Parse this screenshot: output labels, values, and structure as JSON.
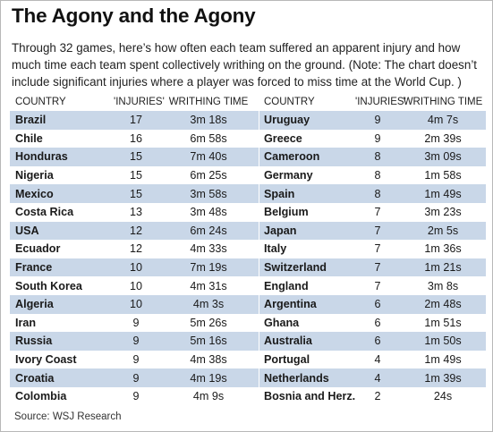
{
  "title": "The Agony and the Agony",
  "subtitle": "Through 32 games, here’s how often each team suffered an apparent injury and how much time each team spent collectively writhing on the ground. (Note: The chart doesn’t include significant injuries where a player was forced to miss time at the World Cup. )",
  "source": "Source: WSJ Research",
  "colors": {
    "row_shade": "#c9d7e8",
    "background": "#ffffff"
  },
  "chart_data": {
    "type": "table",
    "columns": [
      "COUNTRY",
      "'INJURIES'",
      "WRITHING TIME"
    ],
    "left": [
      {
        "country": "Brazil",
        "injuries": "17",
        "time": "3m 18s"
      },
      {
        "country": "Chile",
        "injuries": "16",
        "time": "6m 58s"
      },
      {
        "country": "Honduras",
        "injuries": "15",
        "time": "7m 40s"
      },
      {
        "country": "Nigeria",
        "injuries": "15",
        "time": "6m 25s"
      },
      {
        "country": "Mexico",
        "injuries": "15",
        "time": "3m 58s"
      },
      {
        "country": "Costa Rica",
        "injuries": "13",
        "time": "3m 48s"
      },
      {
        "country": "USA",
        "injuries": "12",
        "time": "6m 24s"
      },
      {
        "country": "Ecuador",
        "injuries": "12",
        "time": "4m 33s"
      },
      {
        "country": "France",
        "injuries": "10",
        "time": "7m 19s"
      },
      {
        "country": "South Korea",
        "injuries": "10",
        "time": "4m 31s"
      },
      {
        "country": "Algeria",
        "injuries": "10",
        "time": "4m 3s"
      },
      {
        "country": "Iran",
        "injuries": "9",
        "time": "5m 26s"
      },
      {
        "country": "Russia",
        "injuries": "9",
        "time": "5m 16s"
      },
      {
        "country": "Ivory Coast",
        "injuries": "9",
        "time": "4m 38s"
      },
      {
        "country": "Croatia",
        "injuries": "9",
        "time": "4m 19s"
      },
      {
        "country": "Colombia",
        "injuries": "9",
        "time": "4m 9s"
      }
    ],
    "right": [
      {
        "country": "Uruguay",
        "injuries": "9",
        "time": "4m 7s"
      },
      {
        "country": "Greece",
        "injuries": "9",
        "time": "2m 39s"
      },
      {
        "country": "Cameroon",
        "injuries": "8",
        "time": "3m 09s"
      },
      {
        "country": "Germany",
        "injuries": "8",
        "time": "1m 58s"
      },
      {
        "country": "Spain",
        "injuries": "8",
        "time": "1m 49s"
      },
      {
        "country": "Belgium",
        "injuries": "7",
        "time": "3m 23s"
      },
      {
        "country": "Japan",
        "injuries": "7",
        "time": "2m 5s"
      },
      {
        "country": "Italy",
        "injuries": "7",
        "time": "1m 36s"
      },
      {
        "country": "Switzerland",
        "injuries": "7",
        "time": "1m 21s"
      },
      {
        "country": "England",
        "injuries": "7",
        "time": "3m 8s"
      },
      {
        "country": "Argentina",
        "injuries": "6",
        "time": "2m 48s"
      },
      {
        "country": "Ghana",
        "injuries": "6",
        "time": "1m 51s"
      },
      {
        "country": "Australia",
        "injuries": "6",
        "time": "1m 50s"
      },
      {
        "country": "Portugal",
        "injuries": "4",
        "time": "1m 49s"
      },
      {
        "country": "Netherlands",
        "injuries": "4",
        "time": "1m 39s"
      },
      {
        "country": "Bosnia and Herz.",
        "injuries": "2",
        "time": "24s"
      }
    ]
  }
}
